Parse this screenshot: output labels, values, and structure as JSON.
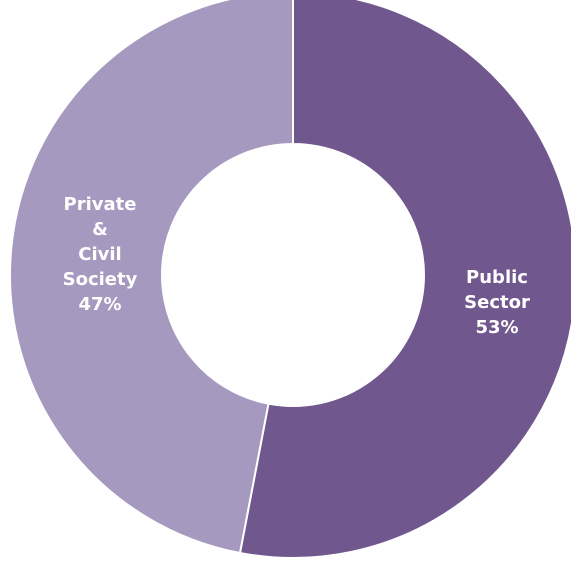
{
  "chart_data": {
    "type": "pie",
    "donut": true,
    "title": "",
    "legend": "none",
    "slices": [
      {
        "label_lines": [
          "Public",
          "Sector"
        ],
        "value": 53,
        "display_value": "53%",
        "color": "#70588f"
      },
      {
        "label_lines": [
          "Private",
          "&",
          "Civil",
          "Society"
        ],
        "value": 47,
        "display_value": "47%",
        "color": "#a699bf"
      }
    ],
    "start_angle_deg": 0,
    "direction": "clockwise",
    "separator_color": "#ffffff"
  }
}
